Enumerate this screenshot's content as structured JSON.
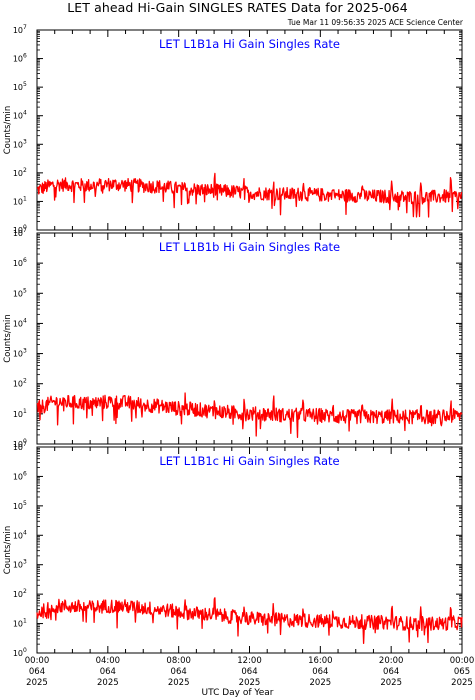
{
  "page": {
    "title": "LET ahead Hi-Gain SINGLES RATES Data for 2025-064",
    "timestamp": "Tue Mar 11 09:56:35 2025 ACE Science Center",
    "x_label": "UTC Day of Year"
  },
  "colors": {
    "series": "#ff0000",
    "panel_title": "#0000ff",
    "axes": "#000000"
  },
  "chart_data": [
    {
      "type": "line",
      "title": "LET L1B1a Hi Gain Singles Rate",
      "ylabel": "Counts/min",
      "yscale": "log",
      "ylim": [
        1,
        10000000
      ],
      "y_tick_labels": [
        "10^0",
        "10^1",
        "10^2",
        "10^3",
        "10^4",
        "10^5",
        "10^6",
        "10^7"
      ],
      "xlim": [
        "064 00:00",
        "065 00:00"
      ],
      "x_tick_labels": [],
      "series": [
        {
          "x": [
            "00:00",
            "01:00",
            "02:00",
            "03:00",
            "04:00",
            "05:00",
            "06:00",
            "07:00",
            "08:00",
            "09:00",
            "10:00",
            "11:00",
            "12:00",
            "13:00",
            "14:00",
            "15:00",
            "16:00",
            "17:00",
            "18:00",
            "19:00",
            "20:00",
            "21:00",
            "22:00",
            "23:00",
            "24:00"
          ],
          "values": [
            25,
            40,
            38,
            36,
            40,
            38,
            35,
            33,
            28,
            26,
            24,
            22,
            20,
            19,
            18,
            18,
            17,
            16,
            16,
            15,
            15,
            14,
            14,
            15,
            15
          ]
        }
      ]
    },
    {
      "type": "line",
      "title": "LET L1B1b Hi Gain Singles Rate",
      "ylabel": "Counts/min",
      "yscale": "log",
      "ylim": [
        1,
        10000000
      ],
      "y_tick_labels": [
        "10^0",
        "10^1",
        "10^2",
        "10^3",
        "10^4",
        "10^5",
        "10^6",
        "10^7"
      ],
      "xlim": [
        "064 00:00",
        "065 00:00"
      ],
      "x_tick_labels": [],
      "series": [
        {
          "x": [
            "00:00",
            "01:00",
            "02:00",
            "03:00",
            "04:00",
            "05:00",
            "06:00",
            "07:00",
            "08:00",
            "09:00",
            "10:00",
            "11:00",
            "12:00",
            "13:00",
            "14:00",
            "15:00",
            "16:00",
            "17:00",
            "18:00",
            "19:00",
            "20:00",
            "21:00",
            "22:00",
            "23:00",
            "24:00"
          ],
          "values": [
            15,
            25,
            24,
            22,
            25,
            24,
            20,
            18,
            15,
            14,
            12,
            11,
            10,
            10,
            9,
            9,
            9,
            8,
            8,
            8,
            8,
            8,
            8,
            8,
            9
          ]
        }
      ]
    },
    {
      "type": "line",
      "title": "LET L1B1c Hi Gain Singles Rate",
      "ylabel": "Counts/min",
      "yscale": "log",
      "ylim": [
        1,
        10000000
      ],
      "y_tick_labels": [
        "10^0",
        "10^1",
        "10^2",
        "10^3",
        "10^4",
        "10^5",
        "10^6",
        "10^7"
      ],
      "xlim": [
        "064 00:00",
        "065 00:00"
      ],
      "x_tick_labels": [
        {
          "time": "00:00",
          "day": "064",
          "year": "2025"
        },
        {
          "time": "04:00",
          "day": "064",
          "year": "2025"
        },
        {
          "time": "08:00",
          "day": "064",
          "year": "2025"
        },
        {
          "time": "12:00",
          "day": "064",
          "year": "2025"
        },
        {
          "time": "16:00",
          "day": "064",
          "year": "2025"
        },
        {
          "time": "20:00",
          "day": "064",
          "year": "2025"
        },
        {
          "time": "00:00",
          "day": "065",
          "year": "2025"
        }
      ],
      "series": [
        {
          "x": [
            "00:00",
            "01:00",
            "02:00",
            "03:00",
            "04:00",
            "05:00",
            "06:00",
            "07:00",
            "08:00",
            "09:00",
            "10:00",
            "11:00",
            "12:00",
            "13:00",
            "14:00",
            "15:00",
            "16:00",
            "17:00",
            "18:00",
            "19:00",
            "20:00",
            "21:00",
            "22:00",
            "23:00",
            "24:00"
          ],
          "values": [
            22,
            40,
            38,
            35,
            40,
            38,
            34,
            30,
            25,
            22,
            20,
            17,
            15,
            14,
            13,
            13,
            12,
            12,
            11,
            11,
            11,
            10,
            10,
            10,
            11
          ]
        }
      ]
    }
  ]
}
